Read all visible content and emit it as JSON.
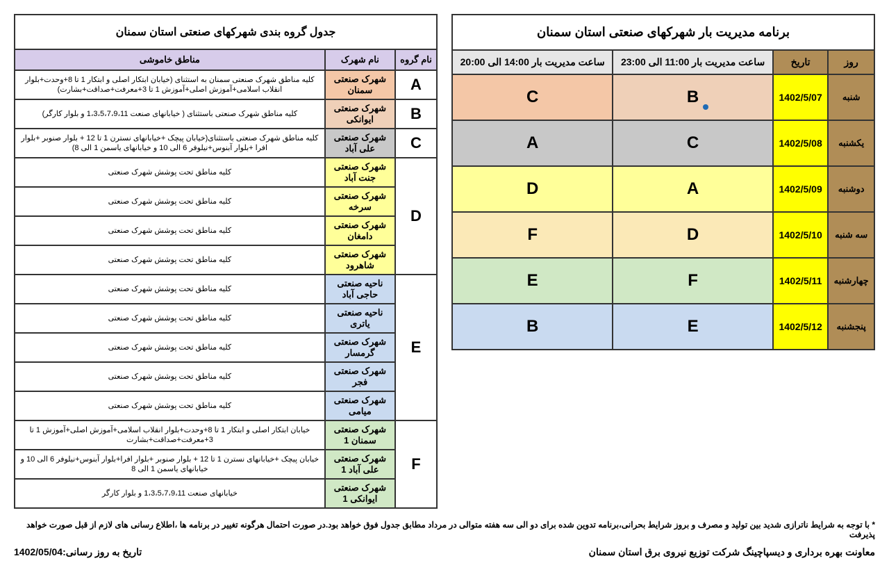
{
  "schedule": {
    "title": "برنامه مدیریت بار شهرکهای صنعتی استان سمنان",
    "headers": {
      "day": "روز",
      "date": "تاریخ",
      "slot1": "ساعت مدیریت بار 11:00 الی 23:00",
      "slot2": "ساعت مدیریت بار 14:00 الی 20:00"
    },
    "rows": [
      {
        "day": "شنبه",
        "date": "1402/5/07",
        "g1": "B",
        "g2": "C",
        "c1": "c-pink",
        "c2": "c-peach",
        "dot": true
      },
      {
        "day": "یکشنبه",
        "date": "1402/5/08",
        "g1": "C",
        "g2": "A",
        "c1": "c-grey",
        "c2": "c-grey"
      },
      {
        "day": "دوشنبه",
        "date": "1402/5/09",
        "g1": "A",
        "g2": "D",
        "c1": "c-yel",
        "c2": "c-yel"
      },
      {
        "day": "سه شنبه",
        "date": "1402/5/10",
        "g1": "D",
        "g2": "F",
        "c1": "c-lyel",
        "c2": "c-lyel"
      },
      {
        "day": "چهارشنبه",
        "date": "1402/5/11",
        "g1": "F",
        "g2": "E",
        "c1": "c-green",
        "c2": "c-green"
      },
      {
        "day": "پنجشنبه",
        "date": "1402/5/12",
        "g1": "E",
        "g2": "B",
        "c1": "c-blue",
        "c2": "c-blue"
      }
    ]
  },
  "grouping": {
    "title": "جدول گروه بندی شهرکهای صنعتی استان سمنان",
    "headers": {
      "group": "نام گروه",
      "park": "نام شهرک",
      "areas": "مناطق خاموشی"
    },
    "groups": [
      {
        "g": "A",
        "color": "c-peach",
        "parks": [
          {
            "n": "شهرک صنعتی سمنان",
            "a": "کلیه مناطق شهرک صنعتی سمنان به استثنای (خیابان ابتکار اصلی و ابتکار 1 تا 8+وحدت+بلوار انقلاب اسلامی+آموزش اصلی+آموزش 1 تا 3+معرفت+صداقت+بشارت)"
          }
        ]
      },
      {
        "g": "B",
        "color": "c-pink",
        "parks": [
          {
            "n": "شهرک صنعتی ایوانکی",
            "a": "کلیه مناطق شهرک صنعتی باستثنای ( خیابانهای صنعت 1،3،5،7،9،11 و بلوار کارگر)"
          }
        ]
      },
      {
        "g": "C",
        "color": "c-grey",
        "parks": [
          {
            "n": "شهرک صنعتی علی آباد",
            "a": "کلیه مناطق شهرک صنعتی باستثنای(خیابان پیچک +خیابانهای نسترن 1 تا 12 + بلوار صنوبر +بلوار افرا +بلوار آبنوس+نیلوفر 6 الی 10 و خیابانهای یاسمن 1 الی 8)"
          }
        ]
      },
      {
        "g": "D",
        "color": "c-yel",
        "parks": [
          {
            "n": "شهرک صنعتی جنت آباد",
            "a": "کلیه مناطق تحت پوشش شهرک صنعتی"
          },
          {
            "n": "شهرک صنعتی سرخه",
            "a": "کلیه مناطق تحت پوشش شهرک صنعتی"
          },
          {
            "n": "شهرک صنعتی دامغان",
            "a": "کلیه مناطق تحت پوشش شهرک صنعتی"
          },
          {
            "n": "شهرک صنعتی شاهرود",
            "a": "کلیه مناطق تحت پوشش شهرک صنعتی"
          }
        ]
      },
      {
        "g": "E",
        "color": "c-blue",
        "parks": [
          {
            "n": "ناحیه صنعتی حاجی آباد",
            "a": "کلیه مناطق تحت پوشش شهرک صنعتی"
          },
          {
            "n": "ناحیه صنعتی یاتری",
            "a": "کلیه مناطق تحت پوشش شهرک صنعتی"
          },
          {
            "n": "شهرک صنعتی گرمسار",
            "a": "کلیه مناطق تحت پوشش شهرک صنعتی"
          },
          {
            "n": "شهرک صنعتی فجر",
            "a": "کلیه مناطق تحت پوشش شهرک صنعتی"
          },
          {
            "n": "شهرک صنعتی میامی",
            "a": "کلیه مناطق تحت پوشش شهرک صنعتی"
          }
        ]
      },
      {
        "g": "F",
        "color": "c-green",
        "parks": [
          {
            "n": "شهرک صنعتی سمنان 1",
            "a": "خیابان ابتکار اصلی و ابتکار 1 تا 8+وحدت+بلوار انقلاب اسلامی+آموزش اصلی+آموزش 1 تا 3+معرفت+صداقت+بشارت"
          },
          {
            "n": "شهرک صنعتی علی آباد 1",
            "a": "خیابان پیچک +خیابانهای نسترن 1 تا 12 + بلوار صنوبر +بلوار افرا+بلوار آبنوس+نیلوفر 6 الی 10 و خیابانهای یاسمن 1 الی 8"
          },
          {
            "n": "شهرک صنعتی ایوانکی 1",
            "a": "خیابانهای صنعت 1،3،5،7،9،11 و بلوار کارگر"
          }
        ]
      }
    ]
  },
  "footer": {
    "note": "* با توجه به شرایط ناترازی شدید بین تولید و مصرف و بروز شرایط بحرانی،برنامه تدوین شده برای دو الی سه هفته متوالی در مرداد مطابق جدول فوق خواهد بود.در صورت احتمال هرگونه تغییر در برنامه ها ،اطلاع رسانی های لازم از قبل صورت خواهد پذیرفت",
    "org": "معاونت بهره برداری و دیسپاچینگ شرکت توزیع نیروی برق استان سمنان",
    "updated": "تاریخ به روز رسانی:1402/05/04"
  }
}
